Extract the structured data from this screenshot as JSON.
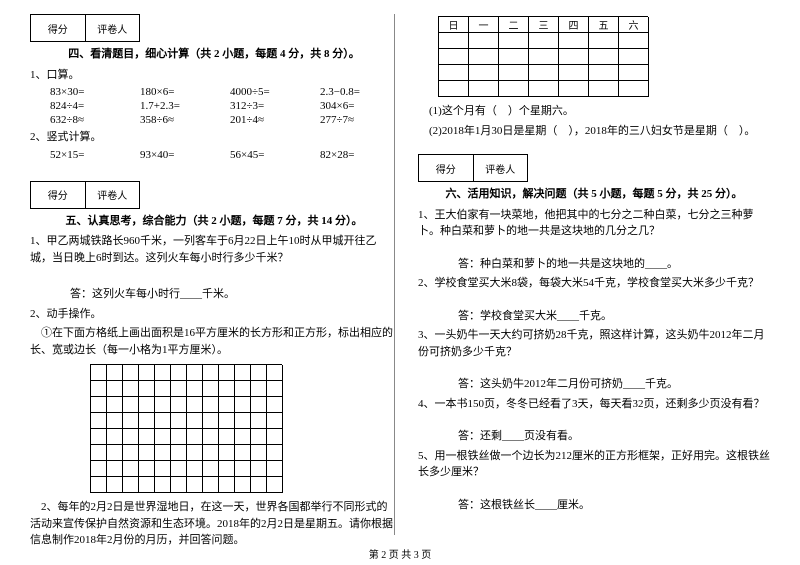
{
  "score_labels": {
    "score": "得分",
    "grader": "评卷人"
  },
  "sec4": {
    "title": "四、看清题目，细心计算（共 2 小题，每题 4 分，共 8 分）。",
    "q1_label": "1、口算。",
    "row1": [
      "83×30=",
      "180×6=",
      "4000÷5=",
      "2.3−0.8="
    ],
    "row2": [
      "824÷4=",
      "1.7+2.3=",
      "312÷3=",
      "304×6="
    ],
    "row3": [
      "632÷8≈",
      "358÷6≈",
      "201÷4≈",
      "277÷7≈"
    ],
    "q2_label": "2、竖式计算。",
    "row4": [
      "52×15=",
      "93×40=",
      "56×45=",
      "82×28="
    ]
  },
  "sec5": {
    "title": "五、认真思考，综合能力（共 2 小题，每题 7 分，共 14 分）。",
    "q1": "1、甲乙两城铁路长960千米，一列客车于6月22日上午10时从甲城开往乙城，当日晚上6时到达。这列火车每小时行多少千米？",
    "a1": "答：这列火车每小时行____千米。",
    "q2": "2、动手操作。",
    "q2b": "①在下面方格纸上画出面积是16平方厘米的长方形和正方形，标出相应的长、宽或边长（每一小格为1平方厘米）。",
    "q2c": "2、每年的2月2日是世界湿地日，在这一天，世界各国都举行不同形式的活动来宣传保护自然资源和生态环境。2018年的2月2日是星期五。请你根据信息制作2018年2月份的月历，并回答问题。"
  },
  "week": {
    "days": [
      "日",
      "一",
      "二",
      "三",
      "四",
      "五",
      "六"
    ]
  },
  "weekq": {
    "a": "(1)这个月有（　）个星期六。",
    "b": "(2)2018年1月30日是星期（　），2018年的三八妇女节是星期（　）。"
  },
  "sec6": {
    "title": "六、活用知识，解决问题（共 5 小题，每题 5 分，共 25 分）。",
    "q1": "1、王大伯家有一块菜地，他把其中的七分之二种白菜，七分之三种萝卜。种白菜和萝卜的地一共是这块地的几分之几？",
    "a1": "答：种白菜和萝卜的地一共是这块地的____。",
    "q2": "2、学校食堂买大米8袋，每袋大米54千克，学校食堂买大米多少千克？",
    "a2": "答：学校食堂买大米____千克。",
    "q3": "3、一头奶牛一天大约可挤奶28千克，照这样计算，这头奶牛2012年二月份可挤奶多少千克？",
    "a3": "答：这头奶牛2012年二月份可挤奶____千克。",
    "q4": "4、一本书150页，冬冬已经看了3天，每天看32页，还剩多少页没有看？",
    "a4": "答：还剩____页没有看。",
    "q5": "5、用一根铁丝做一个边长为212厘米的正方形框架，正好用完。这根铁丝长多少厘米？",
    "a5": "答：这根铁丝长____厘米。"
  },
  "footer": "第 2 页 共 3 页"
}
